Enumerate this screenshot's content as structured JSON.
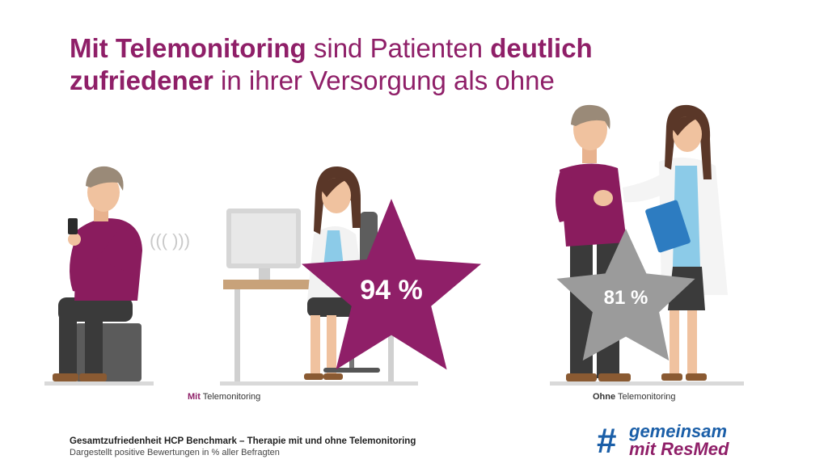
{
  "headline": {
    "part1_bold": "Mit Telemonitoring",
    "part2": " sind Patienten ",
    "part3_bold": "deutlich",
    "part4_bold": "zufriedener",
    "part5": " in ihrer Versorgung als ohne"
  },
  "with_telemonitoring": {
    "value": "94 %",
    "caption_bold": "Mit",
    "caption_rest": " Telemonitoring",
    "signal_glyphs": "(((  )))"
  },
  "without_telemonitoring": {
    "value": "81 %",
    "caption_bold": "Ohne",
    "caption_rest": " Telemonitoring"
  },
  "footer": {
    "line1": "Gesamtzufriedenheit HCP Benchmark – Therapie mit und ohne Telemonitoring",
    "line2": "Dargestellt positive Bewertungen in % aller Befragten"
  },
  "logo": {
    "hash": "#",
    "line1": "gemeinsam",
    "line2": "mit ResMed"
  },
  "colors": {
    "brand_purple": "#8f1f68",
    "star_grey": "#9b9b9b",
    "logo_blue": "#1b5fa8",
    "shirt_purple": "#8a1c5e"
  }
}
